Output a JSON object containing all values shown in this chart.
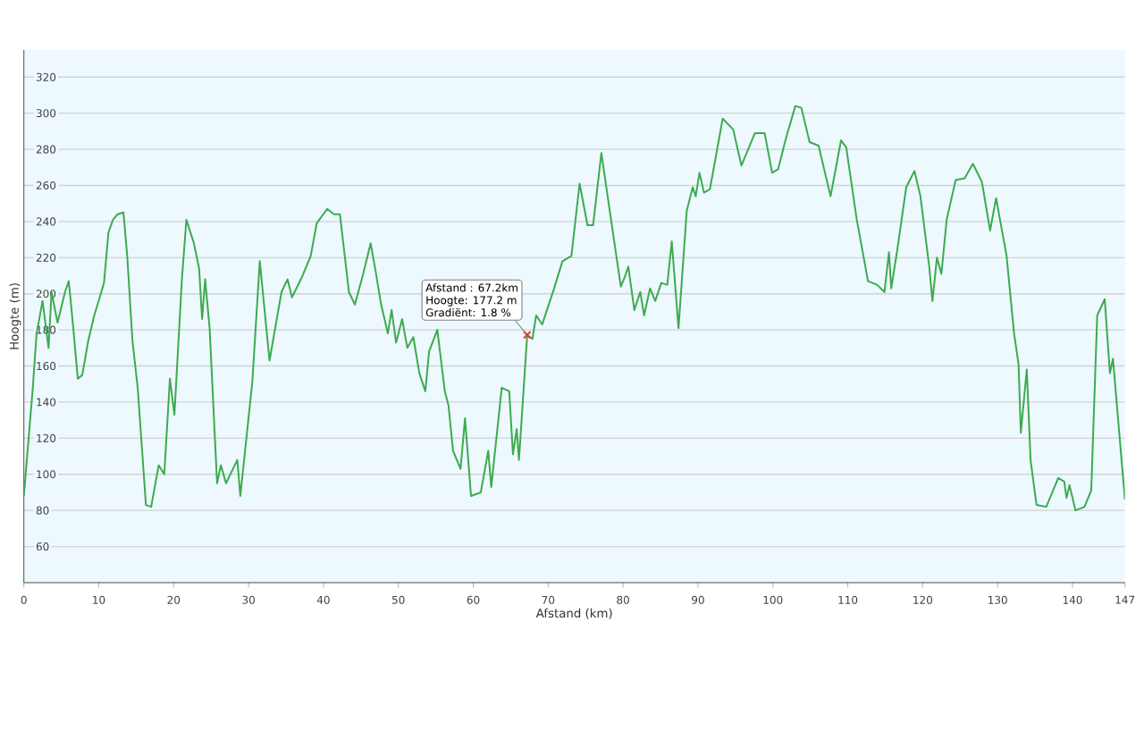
{
  "chart_data": {
    "type": "line",
    "xlabel": "Afstand  (km)",
    "ylabel": "Hoogte (m)",
    "xlim": [
      0,
      147
    ],
    "ylim": [
      40,
      335
    ],
    "xticks": [
      0,
      10,
      20,
      30,
      40,
      50,
      60,
      70,
      80,
      90,
      100,
      110,
      120,
      130,
      140,
      147
    ],
    "yticks": [
      60,
      80,
      100,
      120,
      140,
      160,
      180,
      200,
      220,
      240,
      260,
      280,
      300,
      320
    ],
    "grid": "y",
    "marker": "none",
    "line_style": "solid",
    "annotations": [
      "Afstand : 67.2km",
      "Hoogte: 177.2 m",
      "Gradiënt: 1.8 %"
    ],
    "series": [
      {
        "type": "scatter",
        "color": "#e03c31",
        "marker": "cross",
        "x": [
          67.2
        ],
        "values": [
          177.2
        ]
      },
      {
        "color": "#3daa50",
        "x": [
          0,
          0.6,
          1.2,
          1.7,
          2.5,
          3.3,
          3.7,
          4.5,
          5.5,
          6.0,
          6.6,
          7.2,
          7.8,
          8.6,
          9.4,
          10.2,
          10.7,
          11.3,
          11.9,
          12.5,
          13.3,
          13.8,
          14.5,
          15.2,
          16.3,
          17.0,
          18.0,
          18.75,
          19.5,
          20.1,
          21.1,
          21.7,
          22.7,
          23.4,
          23.8,
          24.2,
          24.8,
          25.8,
          26.3,
          27,
          28.5,
          28.9,
          30.5,
          31.5,
          32.8,
          34.4,
          35.2,
          35.8,
          37.1,
          38.3,
          39.1,
          40.5,
          41.4,
          42.2,
          43.4,
          44.2,
          45.3,
          46.3,
          46.9,
          47.7,
          48.6,
          49.1,
          49.7,
          50.5,
          51.2,
          52.0,
          52.8,
          53.6,
          54.1,
          55.2,
          56.2,
          56.7,
          57.3,
          58.3,
          58.9,
          59.7,
          61,
          62,
          62.4,
          63.8,
          64.8,
          65.3,
          65.8,
          66.1,
          67.2,
          67.9,
          68.4,
          69.2,
          70.8,
          71.9,
          73.1,
          74.2,
          75.25,
          76.0,
          77.1,
          78.5,
          79.7,
          80.2,
          80.7,
          81.5,
          82.3,
          82.8,
          83.6,
          84.3,
          85.1,
          85.9,
          86.5,
          87.4,
          88.5,
          89.3,
          89.7,
          90.2,
          90.8,
          91.6,
          93.3,
          94.7,
          95.8,
          97.6,
          98.9,
          99.9,
          100.7,
          101.8,
          103.0,
          103.8,
          104.9,
          106.1,
          107.7,
          109.1,
          109.8,
          111.2,
          112.7,
          113.9,
          114.9,
          115.5,
          115.8,
          116.6,
          117.8,
          118.9,
          119.7,
          120.9,
          121.3,
          121.9,
          122.5,
          123.2,
          124.4,
          125.6,
          126.7,
          127.9,
          129.0,
          129.8,
          131.2,
          132.2,
          132.8,
          133.1,
          133.9,
          134.4,
          135.2,
          136.5,
          138.1,
          138.9,
          139.2,
          139.6,
          140.4,
          141.6,
          142.5,
          143.3,
          144.3,
          145.0,
          145.4,
          146.2,
          147.0
        ],
        "values": [
          88,
          118,
          148,
          178,
          196,
          170,
          201,
          184,
          201,
          207,
          181,
          153,
          155,
          174,
          188,
          199,
          206,
          234,
          241,
          244,
          245,
          221,
          174,
          148,
          83,
          82,
          105,
          100,
          153,
          133,
          208,
          241,
          228,
          214,
          186,
          208,
          181,
          95,
          105,
          95,
          108,
          88,
          151,
          218,
          163,
          201,
          208,
          198,
          209,
          221,
          239,
          247,
          244,
          244,
          201,
          194,
          211,
          228,
          214,
          194,
          178,
          191,
          173,
          186,
          170,
          176,
          156,
          146,
          168,
          180,
          146,
          138,
          113,
          103,
          131,
          88,
          90,
          113,
          93,
          148,
          146,
          111,
          125,
          108,
          177,
          175,
          188,
          183,
          203,
          218,
          221,
          261,
          238,
          238,
          278,
          238,
          204,
          209,
          215,
          191,
          201,
          188,
          203,
          196,
          206,
          205,
          229,
          181,
          246,
          259,
          254,
          267,
          256,
          258,
          297,
          291,
          271,
          289,
          289,
          267,
          269,
          287,
          304,
          303,
          284,
          282,
          254,
          285,
          281,
          241,
          207,
          205,
          201,
          223,
          203,
          224,
          259,
          268,
          254,
          214,
          196,
          220,
          211,
          241,
          263,
          264,
          272,
          262,
          235,
          253,
          221,
          178,
          161,
          123,
          158,
          108,
          83,
          82,
          98,
          96,
          87,
          94,
          80,
          82,
          91,
          188,
          197,
          156,
          164,
          125,
          86
        ]
      }
    ]
  }
}
